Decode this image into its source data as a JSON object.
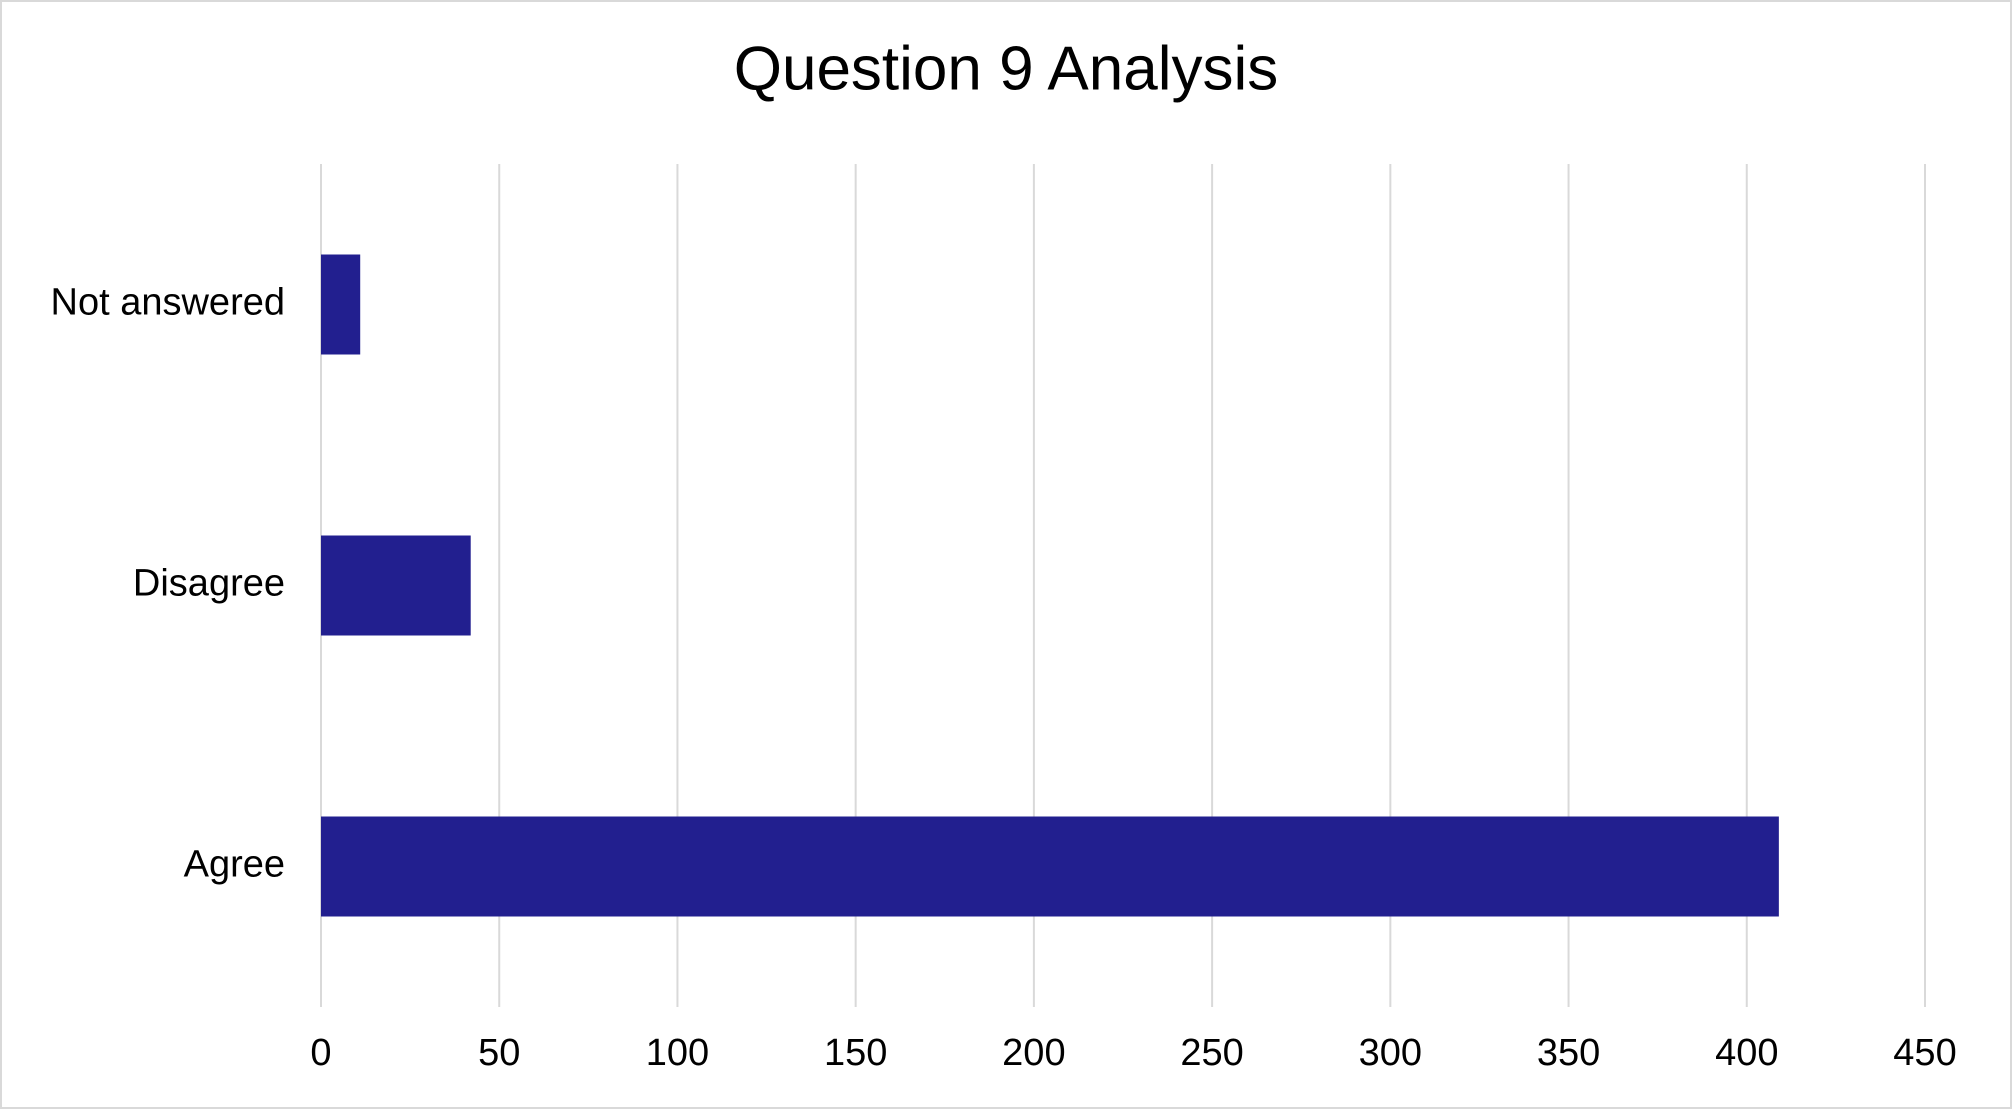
{
  "chart_data": {
    "type": "bar",
    "orientation": "horizontal",
    "title": "Question 9 Analysis",
    "categories": [
      "Agree",
      "Disagree",
      "Not answered"
    ],
    "values": [
      409,
      42,
      11
    ],
    "color": "#221f8f",
    "xlim": [
      0,
      450
    ],
    "xticks": [
      0,
      50,
      100,
      150,
      200,
      250,
      300,
      350,
      400,
      450
    ],
    "grid": true
  }
}
